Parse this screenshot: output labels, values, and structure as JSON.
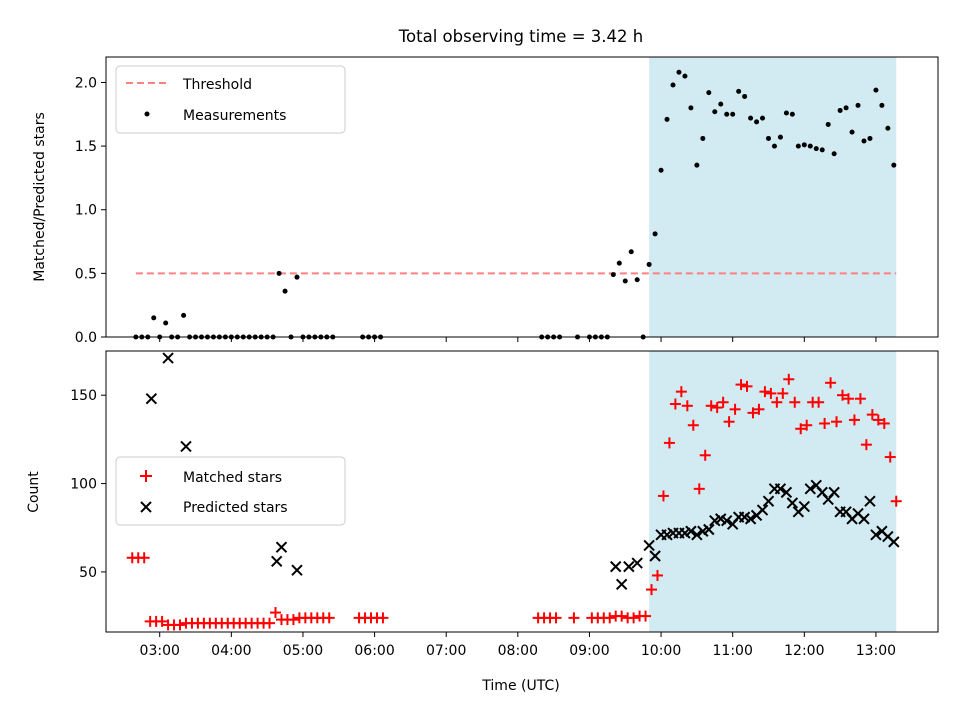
{
  "figure": {
    "title": "Total observing time = 3.42 h",
    "xlabel": "Time (UTC)"
  },
  "colors": {
    "shade": "#add8e6",
    "threshold": "#ff8080",
    "matched": "#ff0000",
    "predicted": "#000000",
    "measurement": "#000000"
  },
  "chart_data": [
    {
      "type": "scatter",
      "title": "Total observing time = 3.42 h",
      "xlabel": "",
      "ylabel": "Matched/Predicted stars",
      "xlim": [
        "02:15",
        "13:52"
      ],
      "ylim": [
        0,
        2.2
      ],
      "yticks": [
        "0.0",
        "0.5",
        "1.0",
        "1.5",
        "2.0"
      ],
      "grid": false,
      "legend_position": "upper-left",
      "shaded_region": {
        "x_start": "09:50",
        "x_end": "13:17"
      },
      "series": [
        {
          "name": "Threshold",
          "kind": "dashed-line",
          "x": [
            "02:40",
            "13:17"
          ],
          "y": [
            0.5,
            0.5
          ]
        },
        {
          "name": "Measurements",
          "kind": "points",
          "points": [
            [
              "02:40",
              0
            ],
            [
              "02:45",
              0
            ],
            [
              "02:50",
              0
            ],
            [
              "02:55",
              0.15
            ],
            [
              "03:00",
              0
            ],
            [
              "03:05",
              0.11
            ],
            [
              "03:10",
              0
            ],
            [
              "03:15",
              0
            ],
            [
              "03:20",
              0.17
            ],
            [
              "03:25",
              0
            ],
            [
              "03:30",
              0
            ],
            [
              "03:35",
              0
            ],
            [
              "03:40",
              0
            ],
            [
              "03:45",
              0
            ],
            [
              "03:50",
              0
            ],
            [
              "03:55",
              0
            ],
            [
              "04:00",
              0
            ],
            [
              "04:05",
              0
            ],
            [
              "04:10",
              0
            ],
            [
              "04:15",
              0
            ],
            [
              "04:20",
              0
            ],
            [
              "04:25",
              0
            ],
            [
              "04:30",
              0
            ],
            [
              "04:35",
              0
            ],
            [
              "04:40",
              0.5
            ],
            [
              "04:45",
              0.36
            ],
            [
              "04:50",
              0
            ],
            [
              "04:55",
              0.47
            ],
            [
              "05:00",
              0
            ],
            [
              "05:05",
              0
            ],
            [
              "05:10",
              0
            ],
            [
              "05:15",
              0
            ],
            [
              "05:20",
              0
            ],
            [
              "05:25",
              0
            ],
            [
              "05:50",
              0
            ],
            [
              "05:55",
              0
            ],
            [
              "06:00",
              0
            ],
            [
              "06:05",
              0
            ],
            [
              "08:20",
              0
            ],
            [
              "08:25",
              0
            ],
            [
              "08:30",
              0
            ],
            [
              "08:35",
              0
            ],
            [
              "08:50",
              0
            ],
            [
              "09:00",
              0
            ],
            [
              "09:05",
              0
            ],
            [
              "09:10",
              0
            ],
            [
              "09:15",
              0
            ],
            [
              "09:20",
              0.49
            ],
            [
              "09:25",
              0.58
            ],
            [
              "09:30",
              0.44
            ],
            [
              "09:35",
              0.67
            ],
            [
              "09:40",
              0.45
            ],
            [
              "09:45",
              0
            ],
            [
              "09:50",
              0.57
            ],
            [
              "09:55",
              0.81
            ],
            [
              "10:00",
              1.31
            ],
            [
              "10:05",
              1.71
            ],
            [
              "10:10",
              1.98
            ],
            [
              "10:15",
              2.08
            ],
            [
              "10:20",
              2.05
            ],
            [
              "10:25",
              1.8
            ],
            [
              "10:30",
              1.35
            ],
            [
              "10:35",
              1.56
            ],
            [
              "10:40",
              1.92
            ],
            [
              "10:45",
              1.77
            ],
            [
              "10:50",
              1.83
            ],
            [
              "10:55",
              1.75
            ],
            [
              "11:00",
              1.75
            ],
            [
              "11:05",
              1.93
            ],
            [
              "11:10",
              1.89
            ],
            [
              "11:15",
              1.72
            ],
            [
              "11:20",
              1.69
            ],
            [
              "11:25",
              1.72
            ],
            [
              "11:30",
              1.56
            ],
            [
              "11:35",
              1.5
            ],
            [
              "11:40",
              1.57
            ],
            [
              "11:45",
              1.76
            ],
            [
              "11:50",
              1.75
            ],
            [
              "11:55",
              1.5
            ],
            [
              "12:00",
              1.51
            ],
            [
              "12:05",
              1.5
            ],
            [
              "12:10",
              1.48
            ],
            [
              "12:15",
              1.47
            ],
            [
              "12:20",
              1.67
            ],
            [
              "12:25",
              1.44
            ],
            [
              "12:30",
              1.78
            ],
            [
              "12:35",
              1.8
            ],
            [
              "12:40",
              1.61
            ],
            [
              "12:45",
              1.82
            ],
            [
              "12:50",
              1.54
            ],
            [
              "12:55",
              1.56
            ],
            [
              "13:00",
              1.94
            ],
            [
              "13:05",
              1.82
            ],
            [
              "13:10",
              1.64
            ],
            [
              "13:15",
              1.35
            ]
          ]
        }
      ]
    },
    {
      "type": "scatter",
      "title": "",
      "xlabel": "Time (UTC)",
      "ylabel": "Count",
      "xlim": [
        "02:15",
        "13:52"
      ],
      "ylim": [
        16,
        175
      ],
      "yticks": [
        "50",
        "100",
        "150"
      ],
      "xticks": [
        "03:00",
        "04:00",
        "05:00",
        "06:00",
        "07:00",
        "08:00",
        "09:00",
        "10:00",
        "11:00",
        "12:00",
        "13:00"
      ],
      "grid": false,
      "legend_position": "center-left",
      "shaded_region": {
        "x_start": "09:50",
        "x_end": "13:17"
      },
      "series": [
        {
          "name": "Matched stars",
          "marker": "+",
          "points": [
            [
              "02:37",
              58
            ],
            [
              "02:42",
              58
            ],
            [
              "02:47",
              58
            ],
            [
              "02:52",
              22
            ],
            [
              "02:57",
              22
            ],
            [
              "03:02",
              22
            ],
            [
              "03:07",
              20
            ],
            [
              "03:12",
              20
            ],
            [
              "03:17",
              20
            ],
            [
              "03:22",
              21
            ],
            [
              "03:27",
              21
            ],
            [
              "03:32",
              21
            ],
            [
              "03:37",
              21
            ],
            [
              "03:42",
              21
            ],
            [
              "03:47",
              21
            ],
            [
              "03:52",
              21
            ],
            [
              "03:57",
              21
            ],
            [
              "04:02",
              21
            ],
            [
              "04:07",
              21
            ],
            [
              "04:12",
              21
            ],
            [
              "04:17",
              21
            ],
            [
              "04:22",
              21
            ],
            [
              "04:27",
              21
            ],
            [
              "04:32",
              21
            ],
            [
              "04:37",
              27
            ],
            [
              "04:42",
              23
            ],
            [
              "04:47",
              23
            ],
            [
              "04:52",
              23
            ],
            [
              "04:57",
              24
            ],
            [
              "05:02",
              24
            ],
            [
              "05:07",
              24
            ],
            [
              "05:12",
              24
            ],
            [
              "05:17",
              24
            ],
            [
              "05:22",
              24
            ],
            [
              "05:47",
              24
            ],
            [
              "05:52",
              24
            ],
            [
              "05:57",
              24
            ],
            [
              "06:02",
              24
            ],
            [
              "06:07",
              24
            ],
            [
              "08:17",
              24
            ],
            [
              "08:22",
              24
            ],
            [
              "08:27",
              24
            ],
            [
              "08:32",
              24
            ],
            [
              "08:47",
              24
            ],
            [
              "09:02",
              24
            ],
            [
              "09:07",
              24
            ],
            [
              "09:12",
              24
            ],
            [
              "09:17",
              24
            ],
            [
              "09:22",
              25
            ],
            [
              "09:27",
              25
            ],
            [
              "09:32",
              24
            ],
            [
              "09:37",
              24
            ],
            [
              "09:42",
              25
            ],
            [
              "09:47",
              25
            ],
            [
              "09:52",
              40
            ],
            [
              "09:57",
              48
            ],
            [
              "10:02",
              93
            ],
            [
              "10:07",
              123
            ],
            [
              "10:12",
              145
            ],
            [
              "10:17",
              152
            ],
            [
              "10:22",
              144
            ],
            [
              "10:27",
              133
            ],
            [
              "10:32",
              97
            ],
            [
              "10:37",
              116
            ],
            [
              "10:42",
              144
            ],
            [
              "10:47",
              143
            ],
            [
              "10:52",
              146
            ],
            [
              "10:57",
              135
            ],
            [
              "11:02",
              142
            ],
            [
              "11:07",
              156
            ],
            [
              "11:12",
              155
            ],
            [
              "11:17",
              140
            ],
            [
              "11:22",
              142
            ],
            [
              "11:27",
              152
            ],
            [
              "11:32",
              151
            ],
            [
              "11:37",
              146
            ],
            [
              "11:42",
              151
            ],
            [
              "11:47",
              159
            ],
            [
              "11:52",
              146
            ],
            [
              "11:57",
              131
            ],
            [
              "12:02",
              133
            ],
            [
              "12:07",
              146
            ],
            [
              "12:12",
              146
            ],
            [
              "12:17",
              134
            ],
            [
              "12:22",
              157
            ],
            [
              "12:27",
              135
            ],
            [
              "12:32",
              150
            ],
            [
              "12:37",
              148
            ],
            [
              "12:42",
              136
            ],
            [
              "12:47",
              148
            ],
            [
              "12:52",
              122
            ],
            [
              "12:57",
              139
            ],
            [
              "13:02",
              136
            ],
            [
              "13:07",
              134
            ],
            [
              "13:12",
              115
            ],
            [
              "13:17",
              90
            ]
          ]
        },
        {
          "name": "Predicted stars",
          "marker": "x",
          "points": [
            [
              "02:53",
              148
            ],
            [
              "03:07",
              171
            ],
            [
              "03:22",
              121
            ],
            [
              "04:38",
              56
            ],
            [
              "04:42",
              64
            ],
            [
              "04:55",
              51
            ],
            [
              "09:22",
              53
            ],
            [
              "09:27",
              43
            ],
            [
              "09:33",
              53
            ],
            [
              "09:40",
              55
            ],
            [
              "09:50",
              65
            ],
            [
              "09:55",
              59
            ],
            [
              "10:00",
              71
            ],
            [
              "10:05",
              71
            ],
            [
              "10:10",
              72
            ],
            [
              "10:15",
              72
            ],
            [
              "10:20",
              72
            ],
            [
              "10:25",
              73
            ],
            [
              "10:30",
              71
            ],
            [
              "10:35",
              73
            ],
            [
              "10:40",
              74
            ],
            [
              "10:45",
              79
            ],
            [
              "10:50",
              80
            ],
            [
              "10:55",
              79
            ],
            [
              "11:00",
              77
            ],
            [
              "11:05",
              81
            ],
            [
              "11:10",
              81
            ],
            [
              "11:15",
              80
            ],
            [
              "11:20",
              82
            ],
            [
              "11:25",
              85
            ],
            [
              "11:30",
              90
            ],
            [
              "11:35",
              97
            ],
            [
              "11:40",
              97
            ],
            [
              "11:45",
              95
            ],
            [
              "11:50",
              89
            ],
            [
              "11:55",
              84
            ],
            [
              "12:00",
              87
            ],
            [
              "12:05",
              97
            ],
            [
              "12:10",
              99
            ],
            [
              "12:15",
              95
            ],
            [
              "12:20",
              91
            ],
            [
              "12:25",
              95
            ],
            [
              "12:30",
              84
            ],
            [
              "12:35",
              84
            ],
            [
              "12:40",
              80
            ],
            [
              "12:45",
              83
            ],
            [
              "12:50",
              80
            ],
            [
              "12:55",
              90
            ],
            [
              "13:00",
              71
            ],
            [
              "13:05",
              73
            ],
            [
              "13:10",
              70
            ],
            [
              "13:15",
              67
            ]
          ]
        }
      ]
    }
  ]
}
